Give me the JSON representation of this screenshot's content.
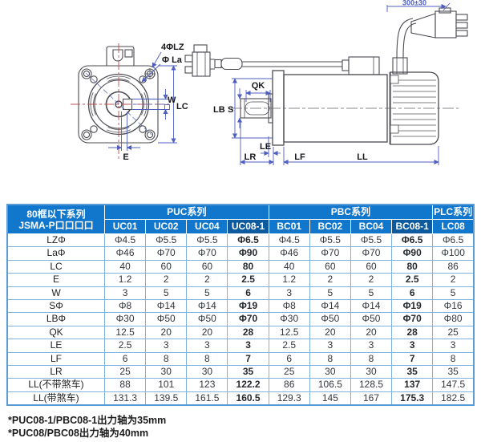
{
  "diagram": {
    "lz_label": "4ΦLZ",
    "la_label": "Φ La",
    "w_label": "W",
    "lc_label": "LC",
    "e_label": "E",
    "qk_label": "QK",
    "lb_label": "LB",
    "s_label": "S",
    "le_label": "LE",
    "lf_label": "LF",
    "lr_label": "LR",
    "ll_label": "LL",
    "cable_label": "300±30"
  },
  "table": {
    "corner_header": {
      "line1": "80框以下系列",
      "line2": "JSMA-P口口口口"
    },
    "groups": [
      {
        "label": "PUC系列",
        "span": 4
      },
      {
        "label": "PBC系列",
        "span": 4
      },
      {
        "label": "PLC系列",
        "span": 1
      }
    ],
    "columns": [
      "UC01",
      "UC02",
      "UC04",
      "UC08-1",
      "BC01",
      "BC02",
      "BC04",
      "BC08-1",
      "LC08"
    ],
    "highlight_columns": [
      3,
      7
    ],
    "rows": [
      {
        "label": "LZΦ",
        "values": [
          "Φ4.5",
          "Φ5.5",
          "Φ5.5",
          "Φ6.5",
          "Φ4.5",
          "Φ5.5",
          "Φ5.5",
          "Φ6.5",
          "Φ6.5"
        ]
      },
      {
        "label": "LaΦ",
        "values": [
          "Φ46",
          "Φ70",
          "Φ70",
          "Φ90",
          "Φ46",
          "Φ70",
          "Φ70",
          "Φ90",
          "Φ100"
        ]
      },
      {
        "label": "LC",
        "values": [
          "40",
          "60",
          "60",
          "80",
          "40",
          "60",
          "60",
          "80",
          "86"
        ]
      },
      {
        "label": "E",
        "values": [
          "1.2",
          "2",
          "2",
          "2.5",
          "1.2",
          "2",
          "2",
          "2.5",
          "2"
        ]
      },
      {
        "label": "W",
        "values": [
          "3",
          "5",
          "5",
          "6",
          "3",
          "5",
          "5",
          "6",
          "5"
        ]
      },
      {
        "label": "SΦ",
        "values": [
          "Φ8",
          "Φ14",
          "Φ14",
          "Φ19",
          "Φ8",
          "Φ14",
          "Φ14",
          "Φ19",
          "Φ16"
        ]
      },
      {
        "label": "LBΦ",
        "values": [
          "Φ30",
          "Φ50",
          "Φ50",
          "Φ70",
          "Φ30",
          "Φ50",
          "Φ50",
          "Φ70",
          "Φ80"
        ]
      },
      {
        "label": "QK",
        "values": [
          "12.5",
          "20",
          "20",
          "28",
          "12.5",
          "20",
          "20",
          "28",
          "25"
        ]
      },
      {
        "label": "LE",
        "values": [
          "2.5",
          "3",
          "3",
          "3",
          "2.5",
          "3",
          "3",
          "3",
          "3"
        ]
      },
      {
        "label": "LF",
        "values": [
          "6",
          "8",
          "8",
          "7",
          "6",
          "8",
          "8",
          "7",
          "8"
        ]
      },
      {
        "label": "LR",
        "values": [
          "25",
          "30",
          "30",
          "35",
          "25",
          "30",
          "30",
          "35",
          "35"
        ]
      },
      {
        "label": "LL(不带煞车)",
        "values": [
          "88",
          "101",
          "123",
          "122.2",
          "86",
          "106.5",
          "128.5",
          "137",
          "147.5"
        ]
      },
      {
        "label": "LL(带煞车)",
        "values": [
          "131.3",
          "139.5",
          "161.5",
          "160.5",
          "129.3",
          "145",
          "167",
          "175.3",
          "182.5"
        ]
      }
    ]
  },
  "footnotes": [
    "*PUC08-1/PBC08-1出力轴为35mm",
    "*PUC08/PBC08出力轴为40mm"
  ],
  "colors": {
    "header_bg": "#1177cc",
    "header_highlight_bg": "#0d5a9e",
    "table_border": "#7fb2df",
    "dimension_blue": "#4f5fc0",
    "centerline_red": "#c05050",
    "outline_gray": "#4b4b52"
  }
}
